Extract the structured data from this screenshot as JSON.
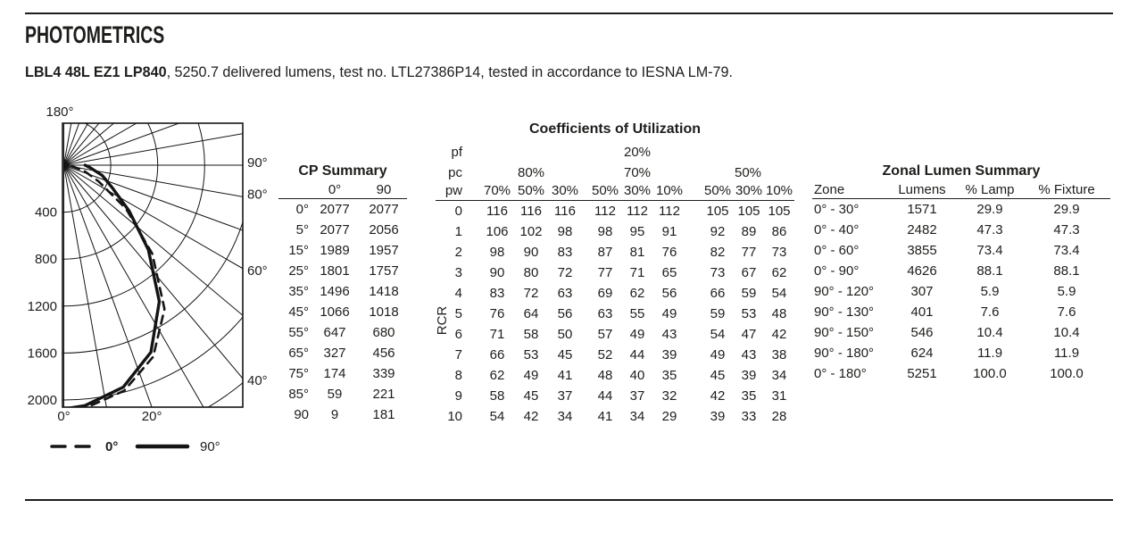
{
  "page": {
    "title": "PHOTOMETRICS",
    "subtitle_bold": "LBL4 48L EZ1 LP840",
    "subtitle_rest": ", 5250.7 delivered lumens, test no. LTL27386P14, tested in accordance to IESNA LM-79."
  },
  "chart_data": {
    "type": "line",
    "subtype": "polar-candela-distribution",
    "title": "",
    "radial_unit": "candela",
    "radial_ticks": [
      400,
      800,
      1200,
      1600,
      2000
    ],
    "unlabeled_arcs": [
      2400
    ],
    "angle_grid_step_deg": 10,
    "angle_max_deg": 180,
    "top_angle_label": "180°",
    "right_angle_labels": [
      90,
      80,
      60,
      40
    ],
    "bottom_angle_labels": [
      0,
      20
    ],
    "legend_position": "bottom",
    "grid": true,
    "series": [
      {
        "name": "0°",
        "line": "dashed",
        "angles_deg": [
          0,
          5,
          15,
          25,
          35,
          45,
          55,
          65,
          75,
          85,
          90
        ],
        "candela": [
          2077,
          2077,
          1989,
          1801,
          1496,
          1066,
          647,
          327,
          174,
          59,
          9
        ]
      },
      {
        "name": "90°",
        "line": "solid",
        "angles_deg": [
          0,
          5,
          15,
          25,
          35,
          45,
          55,
          65,
          75,
          85,
          90
        ],
        "candela": [
          2077,
          2056,
          1957,
          1757,
          1418,
          1018,
          680,
          456,
          339,
          221,
          181
        ]
      }
    ],
    "legend": [
      {
        "label": "0°",
        "line": "dashed"
      },
      {
        "label": "90°",
        "line": "solid"
      }
    ]
  },
  "cp_summary": {
    "title": "CP Summary",
    "col_headers": {
      "plane0": "0°",
      "plane90": "90"
    },
    "rows": [
      {
        "a": "0°",
        "p0": "2077",
        "p90": "2077"
      },
      {
        "a": "5°",
        "p0": "2077",
        "p90": "2056"
      },
      {
        "a": "15°",
        "p0": "1989",
        "p90": "1957"
      },
      {
        "a": "25°",
        "p0": "1801",
        "p90": "1757"
      },
      {
        "a": "35°",
        "p0": "1496",
        "p90": "1418"
      },
      {
        "a": "45°",
        "p0": "1066",
        "p90": "1018"
      },
      {
        "a": "55°",
        "p0": "647",
        "p90": "680"
      },
      {
        "a": "65°",
        "p0": "327",
        "p90": "456"
      },
      {
        "a": "75°",
        "p0": "174",
        "p90": "339"
      },
      {
        "a": "85°",
        "p0": "59",
        "p90": "221"
      },
      {
        "a": "90",
        "p0": "9",
        "p90": "181"
      }
    ]
  },
  "coefficients": {
    "title": "Coefficients of Utilization",
    "pf_label": "pf",
    "pf_value": "20%",
    "pc_label": "pc",
    "pc_values": [
      "80%",
      "70%",
      "50%"
    ],
    "pw_label": "pw",
    "pw_values": [
      "70%",
      "50%",
      "30%",
      "50%",
      "30%",
      "10%",
      "50%",
      "30%",
      "10%"
    ],
    "rcr_label": "RCR",
    "rows": [
      {
        "rcr": "0",
        "v": [
          "116",
          "116",
          "116",
          "112",
          "112",
          "112",
          "105",
          "105",
          "105"
        ]
      },
      {
        "rcr": "1",
        "v": [
          "106",
          "102",
          "98",
          "98",
          "95",
          "91",
          "92",
          "89",
          "86"
        ]
      },
      {
        "rcr": "2",
        "v": [
          "98",
          "90",
          "83",
          "87",
          "81",
          "76",
          "82",
          "77",
          "73"
        ]
      },
      {
        "rcr": "3",
        "v": [
          "90",
          "80",
          "72",
          "77",
          "71",
          "65",
          "73",
          "67",
          "62"
        ]
      },
      {
        "rcr": "4",
        "v": [
          "83",
          "72",
          "63",
          "69",
          "62",
          "56",
          "66",
          "59",
          "54"
        ]
      },
      {
        "rcr": "5",
        "v": [
          "76",
          "64",
          "56",
          "63",
          "55",
          "49",
          "59",
          "53",
          "48"
        ]
      },
      {
        "rcr": "6",
        "v": [
          "71",
          "58",
          "50",
          "57",
          "49",
          "43",
          "54",
          "47",
          "42"
        ]
      },
      {
        "rcr": "7",
        "v": [
          "66",
          "53",
          "45",
          "52",
          "44",
          "39",
          "49",
          "43",
          "38"
        ]
      },
      {
        "rcr": "8",
        "v": [
          "62",
          "49",
          "41",
          "48",
          "40",
          "35",
          "45",
          "39",
          "34"
        ]
      },
      {
        "rcr": "9",
        "v": [
          "58",
          "45",
          "37",
          "44",
          "37",
          "32",
          "42",
          "35",
          "31"
        ]
      },
      {
        "rcr": "10",
        "v": [
          "54",
          "42",
          "34",
          "41",
          "34",
          "29",
          "39",
          "33",
          "28"
        ]
      }
    ]
  },
  "zonal": {
    "title": "Zonal Lumen Summary",
    "headers": {
      "zone": "Zone",
      "lumens": "Lumens",
      "lamp": "% Lamp",
      "fixture": "% Fixture"
    },
    "rows": [
      {
        "zone": "0° - 30°",
        "lumens": "1571",
        "lamp": "29.9",
        "fixture": "29.9"
      },
      {
        "zone": "0° - 40°",
        "lumens": "2482",
        "lamp": "47.3",
        "fixture": "47.3"
      },
      {
        "zone": "0° - 60°",
        "lumens": "3855",
        "lamp": "73.4",
        "fixture": "73.4"
      },
      {
        "zone": "0° - 90°",
        "lumens": "4626",
        "lamp": "88.1",
        "fixture": "88.1"
      },
      {
        "zone": "90° - 120°",
        "lumens": "307",
        "lamp": "5.9",
        "fixture": "5.9"
      },
      {
        "zone": "90° - 130°",
        "lumens": "401",
        "lamp": "7.6",
        "fixture": "7.6"
      },
      {
        "zone": "90° - 150°",
        "lumens": "546",
        "lamp": "10.4",
        "fixture": "10.4"
      },
      {
        "zone": "90° - 180°",
        "lumens": "624",
        "lamp": "11.9",
        "fixture": "11.9"
      },
      {
        "zone": "0° - 180°",
        "lumens": "5251",
        "lamp": "100.0",
        "fixture": "100.0"
      }
    ]
  }
}
